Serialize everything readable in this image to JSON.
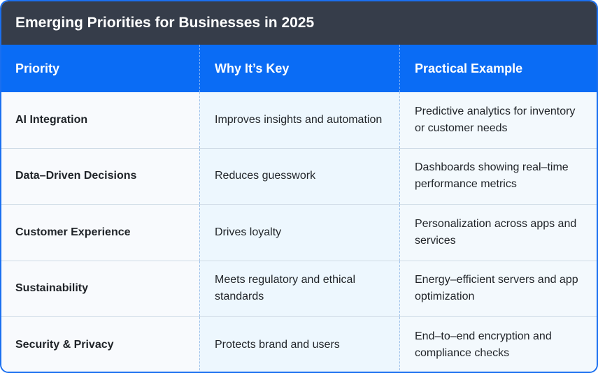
{
  "title": "Emerging Priorities for Businesses in 2025",
  "columns": [
    "Priority",
    "Why It’s Key",
    "Practical Example"
  ],
  "rows": [
    [
      "AI Integration",
      "Improves insights and automation",
      "Predictive analytics for inventory or customer needs"
    ],
    [
      "Data–Driven Decisions",
      "Reduces guesswork",
      "Dashboards showing real–time performance metrics"
    ],
    [
      "Customer Experience",
      "Drives loyalty",
      "Personalization across apps and services"
    ],
    [
      "Sustainability",
      "Meets regulatory and ethical standards",
      "Energy–efficient servers and app optimization"
    ],
    [
      "Security & Privacy",
      "Protects brand and users",
      "End–to–end encryption and compliance checks"
    ]
  ]
}
